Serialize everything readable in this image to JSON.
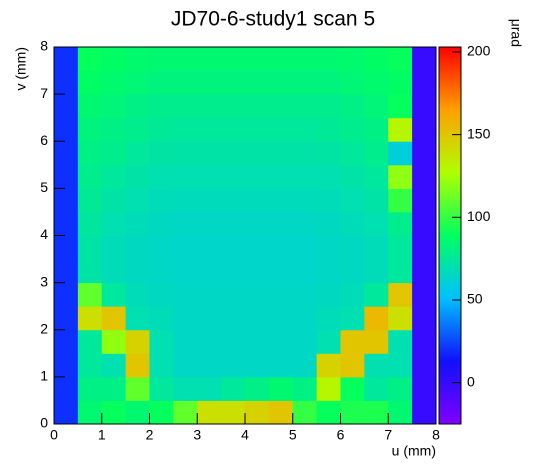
{
  "chart_data": {
    "type": "heatmap",
    "title": "JD70-6-study1 scan 5",
    "x_label": "u (mm)",
    "y_label": "v (mm)",
    "z_label": "μrad",
    "x": [
      0.25,
      0.75,
      1.25,
      1.75,
      2.25,
      2.75,
      3.25,
      3.75,
      4.25,
      4.75,
      5.25,
      5.75,
      6.25,
      6.75,
      7.25,
      7.75
    ],
    "y": [
      0.25,
      0.75,
      1.25,
      1.75,
      2.25,
      2.75,
      3.25,
      3.75,
      4.25,
      4.75,
      5.25,
      5.75,
      6.25,
      6.75,
      7.25,
      7.75
    ],
    "z": [
      [
        20,
        85,
        90,
        85,
        90,
        110,
        140,
        140,
        145,
        150,
        100,
        90,
        95,
        95,
        85,
        0
      ],
      [
        20,
        80,
        80,
        110,
        75,
        70,
        70,
        75,
        80,
        85,
        80,
        130,
        90,
        75,
        80,
        0
      ],
      [
        20,
        75,
        70,
        150,
        70,
        65,
        65,
        65,
        65,
        65,
        65,
        145,
        150,
        70,
        70,
        0
      ],
      [
        20,
        75,
        120,
        145,
        70,
        65,
        65,
        65,
        65,
        65,
        65,
        70,
        150,
        150,
        70,
        0
      ],
      [
        20,
        140,
        150,
        70,
        68,
        65,
        65,
        65,
        65,
        65,
        65,
        68,
        70,
        155,
        140,
        0
      ],
      [
        20,
        110,
        75,
        68,
        66,
        65,
        65,
        65,
        65,
        65,
        65,
        66,
        68,
        75,
        150,
        0
      ],
      [
        20,
        72,
        68,
        66,
        65,
        64,
        64,
        64,
        64,
        64,
        64,
        65,
        66,
        68,
        75,
        0
      ],
      [
        20,
        72,
        68,
        66,
        65,
        64,
        64,
        64,
        64,
        64,
        64,
        65,
        66,
        68,
        75,
        0
      ],
      [
        20,
        74,
        70,
        68,
        66,
        65,
        65,
        65,
        65,
        65,
        65,
        66,
        68,
        70,
        78,
        0
      ],
      [
        20,
        76,
        72,
        70,
        68,
        67,
        67,
        67,
        67,
        67,
        67,
        68,
        70,
        72,
        100,
        0
      ],
      [
        20,
        78,
        75,
        72,
        70,
        70,
        70,
        70,
        70,
        70,
        70,
        70,
        72,
        75,
        120,
        0
      ],
      [
        20,
        80,
        78,
        75,
        73,
        72,
        72,
        72,
        72,
        72,
        72,
        73,
        75,
        78,
        60,
        0
      ],
      [
        20,
        82,
        80,
        78,
        76,
        75,
        75,
        75,
        75,
        75,
        75,
        76,
        78,
        80,
        130,
        0
      ],
      [
        20,
        85,
        83,
        80,
        78,
        78,
        78,
        78,
        78,
        78,
        78,
        78,
        80,
        83,
        90,
        0
      ],
      [
        20,
        88,
        86,
        84,
        82,
        82,
        82,
        82,
        82,
        82,
        82,
        82,
        84,
        86,
        88,
        0
      ],
      [
        20,
        90,
        88,
        86,
        85,
        85,
        85,
        85,
        85,
        85,
        85,
        85,
        86,
        88,
        90,
        0
      ]
    ],
    "xlim": [
      0,
      8
    ],
    "ylim": [
      0,
      8
    ],
    "zlim": [
      -25,
      203
    ],
    "xticks": [
      0,
      1,
      2,
      3,
      4,
      5,
      6,
      7,
      8
    ],
    "yticks": [
      0,
      1,
      2,
      3,
      4,
      5,
      6,
      7,
      8
    ],
    "zticks": [
      0,
      50,
      100,
      150,
      200
    ],
    "colorscale": [
      "#7f00ff",
      "#1010ff",
      "#00c0ff",
      "#00ff60",
      "#b0ff00",
      "#ffa000",
      "#ff0000"
    ]
  }
}
